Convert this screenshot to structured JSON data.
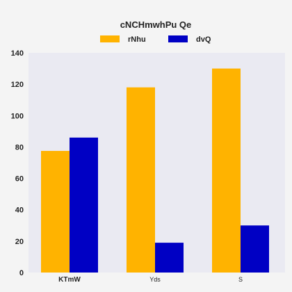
{
  "chart_data": {
    "type": "bar",
    "title": "cNCHmwhPu Qe",
    "xlabel": "",
    "ylabel": "",
    "categories": [
      "KTmW",
      "Yds",
      "S"
    ],
    "series": [
      {
        "name": "rNhu",
        "values": [
          77.5,
          118,
          130
        ],
        "color": "#ffb300"
      },
      {
        "name": "dvQ",
        "values": [
          86,
          19,
          30
        ],
        "color": "#0000c4"
      }
    ],
    "ylim": [
      0,
      140
    ],
    "yticks": [
      0,
      20,
      40,
      60,
      80,
      100,
      120,
      140
    ],
    "grid": false,
    "legend": "top-center",
    "plot_background": "#eaeaf2",
    "bold_categories": [
      "KTmW"
    ]
  }
}
